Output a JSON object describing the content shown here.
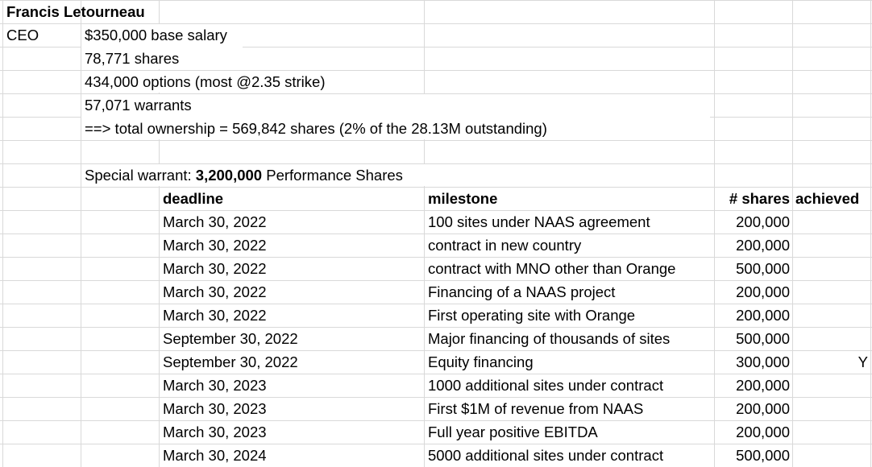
{
  "person": {
    "name": "Francis Letourneau",
    "title": "CEO",
    "details": [
      "$350,000 base salary",
      "78,771 shares",
      "434,000 options (most @2.35 strike)",
      "57,071 warrants",
      "==> total ownership = 569,842 shares (2% of the 28.13M outstanding)"
    ]
  },
  "special_warrant": {
    "prefix": "Special warrant: ",
    "amount": "3,200,000",
    "suffix": " Performance Shares"
  },
  "table": {
    "headers": {
      "deadline": "deadline",
      "milestone": "milestone",
      "shares": "# shares",
      "achieved": "achieved"
    },
    "rows": [
      {
        "deadline": "March 30, 2022",
        "milestone": "100 sites under NAAS agreement",
        "shares": "200,000",
        "achieved": ""
      },
      {
        "deadline": "March 30, 2022",
        "milestone": "contract in new country",
        "shares": "200,000",
        "achieved": ""
      },
      {
        "deadline": "March 30, 2022",
        "milestone": "contract with MNO other than Orange",
        "shares": "500,000",
        "achieved": ""
      },
      {
        "deadline": "March 30, 2022",
        "milestone": "Financing of a NAAS project",
        "shares": "200,000",
        "achieved": ""
      },
      {
        "deadline": "March 30, 2022",
        "milestone": "First operating site with Orange",
        "shares": "200,000",
        "achieved": ""
      },
      {
        "deadline": "September 30, 2022",
        "milestone": "Major financing of thousands of sites",
        "shares": "500,000",
        "achieved": ""
      },
      {
        "deadline": "September 30, 2022",
        "milestone": "Equity financing",
        "shares": "300,000",
        "achieved": "Y"
      },
      {
        "deadline": "March 30, 2023",
        "milestone": "1000 additional sites under contract",
        "shares": "200,000",
        "achieved": ""
      },
      {
        "deadline": "March 30, 2023",
        "milestone": "First $1M of revenue from NAAS",
        "shares": "200,000",
        "achieved": ""
      },
      {
        "deadline": "March 30, 2023",
        "milestone": "Full year positive EBITDA",
        "shares": "200,000",
        "achieved": ""
      },
      {
        "deadline": "March 30, 2024",
        "milestone": "5000 additional sites under contract",
        "shares": "500,000",
        "achieved": ""
      }
    ]
  }
}
